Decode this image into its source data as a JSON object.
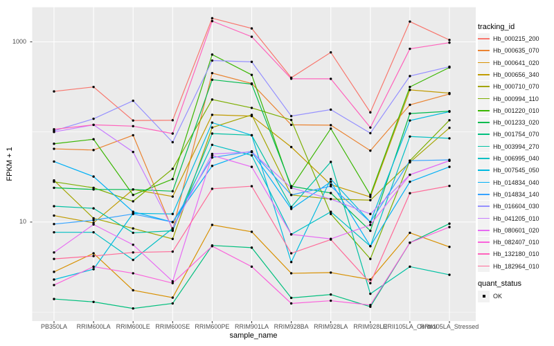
{
  "chart_data": {
    "type": "line",
    "title": "",
    "xlabel": "sample_name",
    "ylabel": "FPKM + 1",
    "y_scale": "log10",
    "ylim": [
      0.7,
      2500
    ],
    "grid": true,
    "legend_position": "right",
    "panel_bg": "#EBEBEB",
    "gridline_color": "#FFFFFF",
    "tick_color": "#333333",
    "tick_text_color": "#4D4D4D",
    "point_color": "#000000",
    "y_tick_labels": [
      "1000",
      "10"
    ],
    "y_tick_values": [
      1000,
      10
    ],
    "y_minor_gridline_values": [
      100,
      1
    ],
    "categories": [
      "PB350LA",
      "RRIM600LA",
      "RRIM600LE",
      "RRIM600SE",
      "RRIM600PE",
      "RRIM901LA",
      "RRIM928BA",
      "RRIM928LA",
      "RRIM928LE",
      "RRII105LA_Control",
      "RRII105LA_Stressed"
    ],
    "legend": {
      "tracking_title": "tracking_id",
      "quant_title": "quant_status",
      "quant_label": "OK"
    },
    "series": [
      {
        "name": "Hb_000215_200",
        "color": "#F8766D",
        "values": [
          282,
          316,
          134,
          135,
          1830,
          1410,
          400,
          765,
          165,
          1680,
          1050
        ]
      },
      {
        "name": "Hb_000635_070",
        "color": "#EA8331",
        "values": [
          65,
          63,
          92,
          8.2,
          450,
          345,
          120,
          119,
          62,
          200,
          264
        ]
      },
      {
        "name": "Hb_000641_020",
        "color": "#D89000",
        "values": [
          2.8,
          4.5,
          1.75,
          1.45,
          9.3,
          7.8,
          2.7,
          2.75,
          2.3,
          7.6,
          5.3
        ]
      },
      {
        "name": "Hb_000656_340",
        "color": "#C09B00",
        "values": [
          11.8,
          9.8,
          23,
          19.2,
          155,
          150,
          68,
          26,
          19,
          293,
          270
        ]
      },
      {
        "name": "Hb_000710_070",
        "color": "#A3A500",
        "values": [
          29,
          11,
          8.5,
          6.5,
          112,
          155,
          20,
          18,
          17.5,
          46,
          111
        ]
      },
      {
        "name": "Hb_000994_110",
        "color": "#7CAE00",
        "values": [
          28,
          24,
          17,
          39,
          229,
          185,
          136,
          12.3,
          3.9,
          48,
          135
        ]
      },
      {
        "name": "Hb_001220_010",
        "color": "#39B600",
        "values": [
          74,
          83,
          20,
          30,
          723,
          430,
          24,
          109,
          20,
          316,
          520
        ]
      },
      {
        "name": "Hb_001233_020",
        "color": "#00BB4E",
        "values": [
          24,
          23,
          23,
          22,
          380,
          340,
          25,
          21,
          8,
          160,
          170
        ]
      },
      {
        "name": "Hb_001754_070",
        "color": "#00BF7D",
        "values": [
          1.4,
          1.3,
          1.1,
          1.25,
          5.5,
          5.2,
          1.44,
          1.57,
          1.15,
          5.9,
          9.6
        ]
      },
      {
        "name": "Hb_003994_270",
        "color": "#00C1A3",
        "values": [
          15,
          14.2,
          7.6,
          8,
          96,
          92,
          14.7,
          46.5,
          1.6,
          3.2,
          2.6
        ]
      },
      {
        "name": "Hb_006995_040",
        "color": "#00BFC4",
        "values": [
          7.7,
          7.7,
          3.8,
          8.5,
          72,
          55,
          7.3,
          13,
          5.4,
          89,
          85
        ]
      },
      {
        "name": "Hb_007545_050",
        "color": "#00BAE0",
        "values": [
          2.3,
          3.0,
          12.5,
          12.3,
          127,
          92,
          3.6,
          30,
          10,
          134,
          168
        ]
      },
      {
        "name": "Hb_014834_040",
        "color": "#00B0F6",
        "values": [
          47,
          32,
          13,
          10,
          42,
          60,
          14,
          28,
          5.4,
          28,
          41
        ]
      },
      {
        "name": "Hb_014834_140",
        "color": "#35A2FF",
        "values": [
          9.5,
          10.5,
          12.3,
          10,
          52,
          61,
          20,
          25,
          10,
          48,
          49
        ]
      },
      {
        "name": "Hb_016604_030",
        "color": "#9590FF",
        "values": [
          103,
          140,
          222,
          77,
          620,
          600,
          150,
          177,
          97,
          417,
          530
        ]
      },
      {
        "name": "Hb_041205_010",
        "color": "#C77CFF",
        "values": [
          100,
          120,
          60,
          8.5,
          57,
          60,
          24,
          18,
          12.3,
          33.5,
          48
        ]
      },
      {
        "name": "Hb_080601_020",
        "color": "#E76BF3",
        "values": [
          4.6,
          9.4,
          5.6,
          2.2,
          55,
          41,
          7.3,
          6.5,
          9.3,
          33.5,
          48
        ]
      },
      {
        "name": "Hb_082407_010",
        "color": "#FA62DB",
        "values": [
          2.0,
          3.2,
          2.7,
          2.1,
          5.4,
          3.2,
          1.25,
          1.34,
          1.2,
          5.9,
          8.8
        ]
      },
      {
        "name": "Hb_132180_010",
        "color": "#FF62BC",
        "values": [
          107,
          120,
          116,
          96,
          1700,
          1140,
          390,
          389,
          112,
          837,
          980
        ]
      },
      {
        "name": "Hb_182964_010",
        "color": "#FF6A98",
        "values": [
          3.9,
          4.2,
          4.6,
          4.7,
          23.4,
          25,
          4.5,
          6.4,
          2.1,
          20.9,
          25.2
        ]
      }
    ]
  }
}
